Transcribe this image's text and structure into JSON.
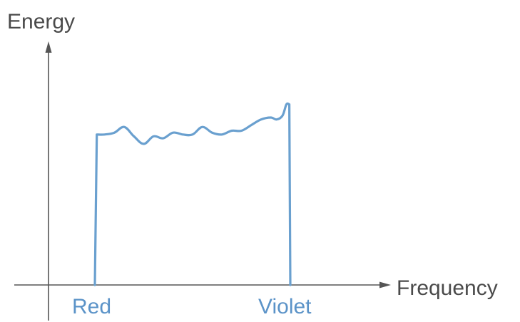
{
  "chart_data": {
    "type": "line",
    "title": "",
    "xlabel": "Frequency",
    "ylabel": "Energy",
    "x_tick_labels": {
      "start": "Red",
      "end": "Violet"
    },
    "grid": false,
    "legend": "none",
    "series": [
      {
        "x": [
          0.0,
          0.01,
          0.05,
          0.1,
          0.15,
          0.2,
          0.25,
          0.3,
          0.35,
          0.4,
          0.45,
          0.5,
          0.55,
          0.6,
          0.65,
          0.7,
          0.75,
          0.8,
          0.85,
          0.9,
          0.93,
          0.96,
          0.98,
          0.995,
          1.0
        ],
        "y": [
          0.0,
          0.8,
          0.8,
          0.81,
          0.84,
          0.79,
          0.75,
          0.79,
          0.78,
          0.81,
          0.8,
          0.8,
          0.84,
          0.81,
          0.8,
          0.82,
          0.82,
          0.85,
          0.88,
          0.89,
          0.88,
          0.9,
          0.96,
          0.96,
          0.0
        ]
      }
    ],
    "xlim": [
      -0.24,
      1.48
    ],
    "ylim": [
      -0.2,
      1.34
    ],
    "colors": {
      "series": "#6aa0cf",
      "axis": "#555555",
      "axis_text": "#4a4a4a",
      "tick_text": "#5b93c8"
    }
  }
}
